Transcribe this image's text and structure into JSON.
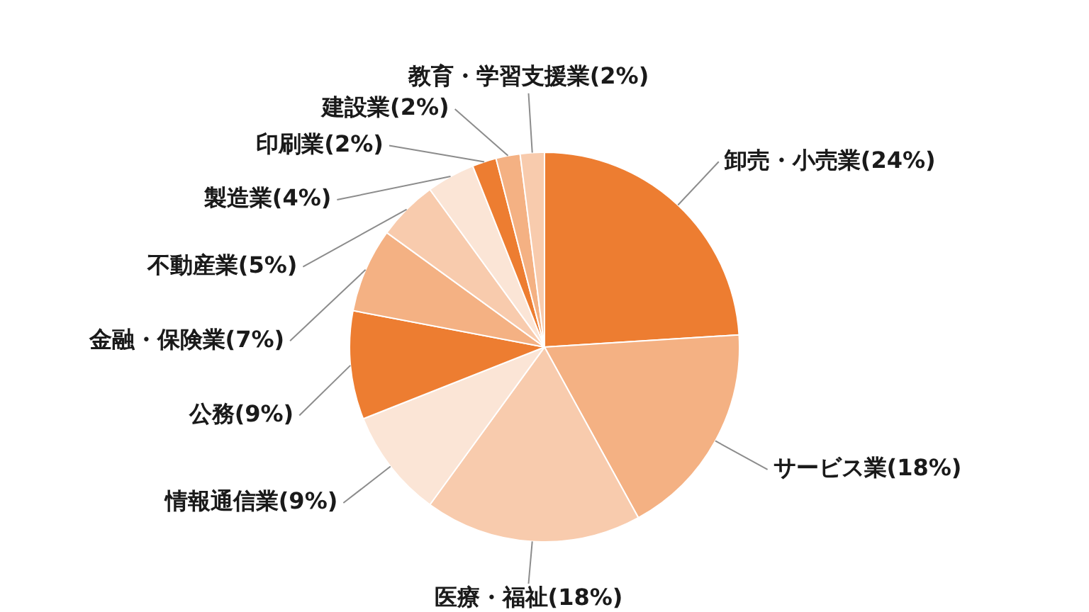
{
  "chart_data": {
    "type": "pie",
    "categories": [
      "卸売・小売業",
      "サービス業",
      "医療・福祉",
      "情報通信業",
      "公務",
      "金融・保険業",
      "不動産業",
      "製造業",
      "印刷業",
      "建設業",
      "教育・学習支援業"
    ],
    "values": [
      24,
      18,
      18,
      9,
      9,
      7,
      5,
      4,
      2,
      2,
      2
    ],
    "value_labels": [
      "(24%)",
      "(18%)",
      "(18%)",
      "(9%)",
      "(9%)",
      "(7%)",
      "(5%)",
      "(4%)",
      "(2%)",
      "(2%)",
      "(2%)"
    ],
    "colors": [
      "#ed7d31",
      "#f4b183",
      "#f8cbad",
      "#fbe5d6",
      "#ed7d31",
      "#f4b183",
      "#f8cbad",
      "#fbe5d6",
      "#ed7d31",
      "#f4b183",
      "#f8cbad"
    ]
  }
}
